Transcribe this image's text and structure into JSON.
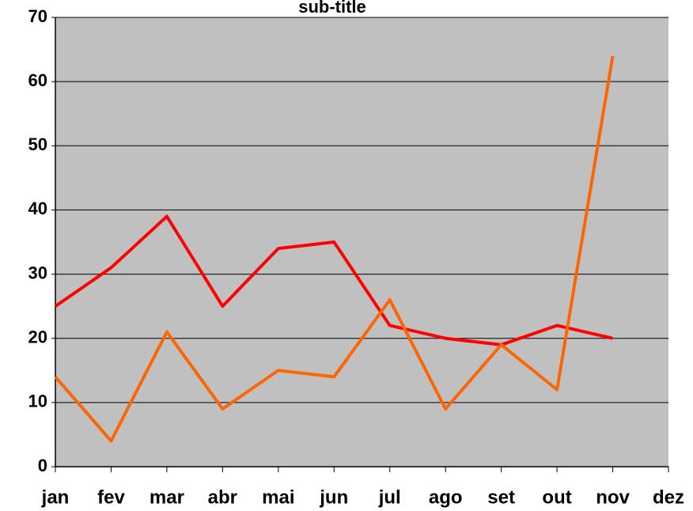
{
  "chart_data": {
    "type": "line",
    "title": "sub-title",
    "categories": [
      "jan",
      "fev",
      "mar",
      "abr",
      "mai",
      "jun",
      "jul",
      "ago",
      "set",
      "out",
      "nov",
      "dez"
    ],
    "series": [
      {
        "color": "#ff0000",
        "values": [
          25,
          31,
          39,
          25,
          34,
          35,
          22,
          20,
          19,
          22,
          20,
          null
        ]
      },
      {
        "color": "#ff6600",
        "values": [
          14,
          4,
          21,
          9,
          15,
          14,
          26,
          9,
          19,
          12,
          64,
          null
        ]
      }
    ],
    "ylim": [
      0,
      70
    ],
    "yticks": [
      0,
      10,
      20,
      30,
      40,
      50,
      60,
      70
    ],
    "grid": true
  }
}
